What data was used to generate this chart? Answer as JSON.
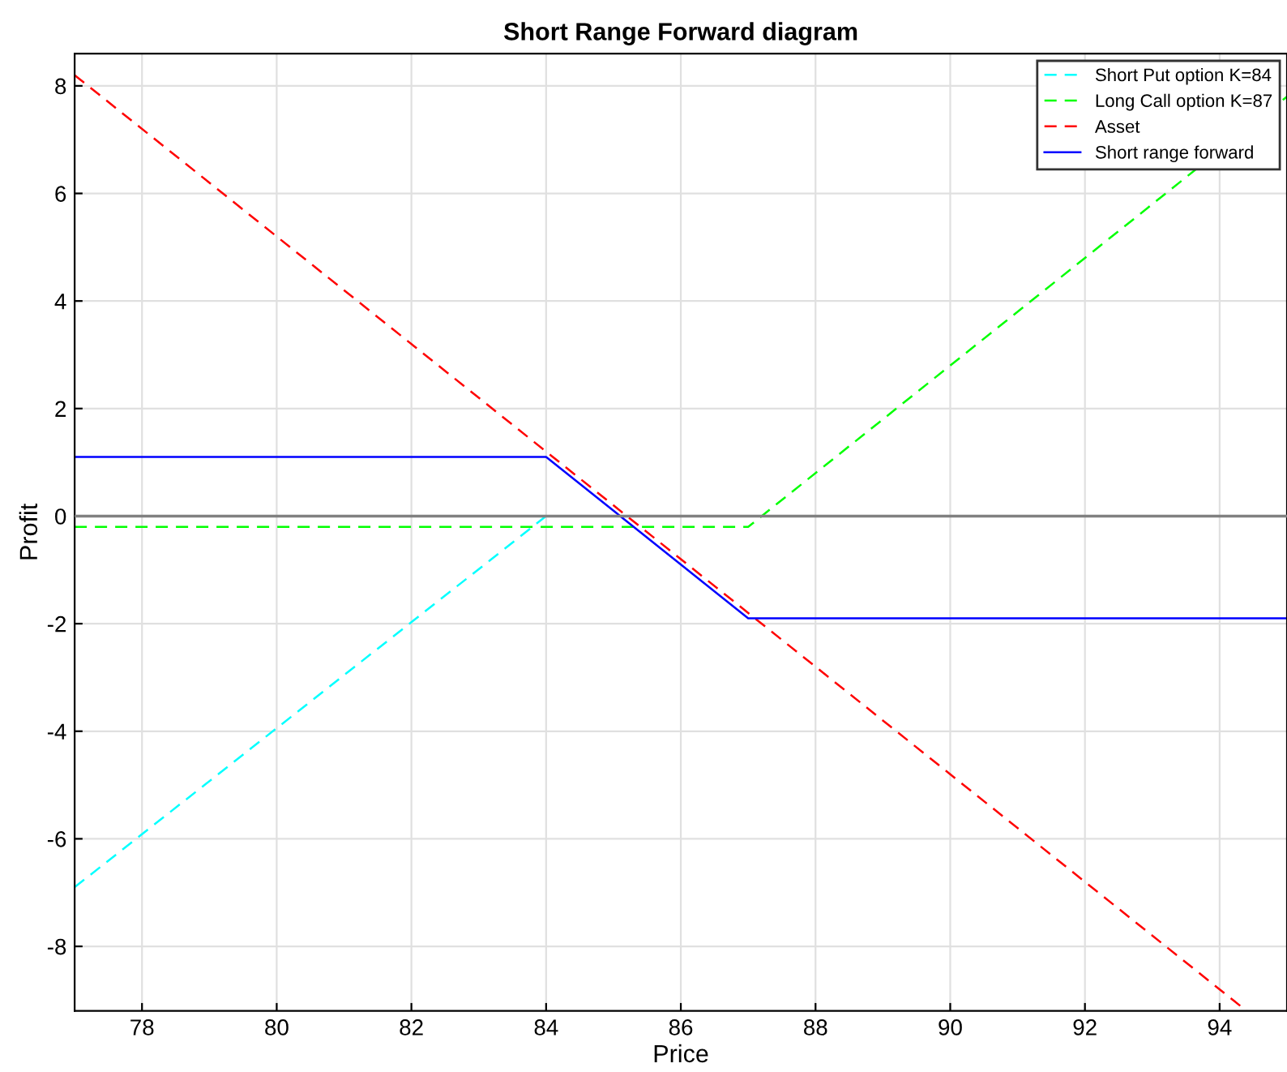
{
  "chart_data": {
    "type": "line",
    "title": "Short Range Forward diagram",
    "xlabel": "Price",
    "ylabel": "Profit",
    "xlim": [
      77,
      95
    ],
    "ylim": [
      -9.2,
      8.6
    ],
    "xticks": [
      78,
      80,
      82,
      84,
      86,
      88,
      90,
      92,
      94
    ],
    "yticks": [
      -8,
      -6,
      -4,
      -2,
      0,
      2,
      4,
      6,
      8
    ],
    "grid": true,
    "legend": "top right",
    "ref_lines": [
      {
        "axis": "y",
        "value": 0,
        "color": "#808080",
        "line_style": "solid"
      }
    ],
    "series": [
      {
        "name": "Short Put option K=84",
        "color": "#00ffff",
        "line_style": "dashed",
        "x": [
          77,
          84
        ],
        "values": [
          -6.9,
          0
        ]
      },
      {
        "name": "Long Call option K=87",
        "color": "#00ff00",
        "line_style": "dashed",
        "x": [
          77,
          84,
          87,
          95
        ],
        "values": [
          -0.2,
          -0.2,
          -0.2,
          7.8
        ]
      },
      {
        "name": "Asset",
        "color": "#ff0000",
        "line_style": "dashed",
        "x": [
          77,
          94.4
        ],
        "values": [
          8.2,
          -9.2
        ]
      },
      {
        "name": "Short range forward",
        "color": "#0000ff",
        "line_style": "solid",
        "x": [
          77,
          84,
          87,
          95
        ],
        "values": [
          1.1,
          1.1,
          -1.9,
          -1.9
        ]
      }
    ]
  }
}
